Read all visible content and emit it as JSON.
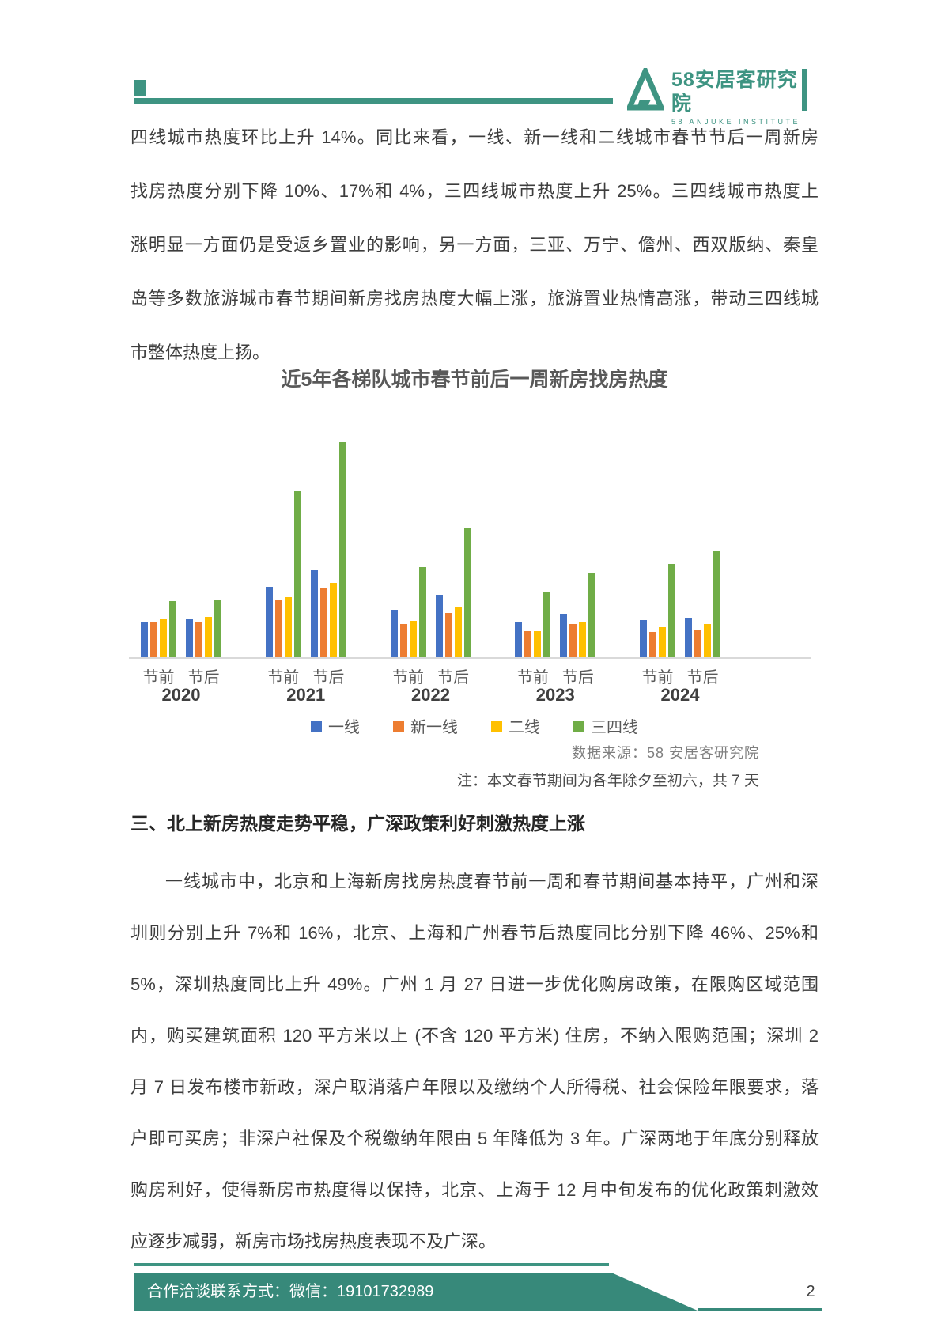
{
  "page": {
    "number": "2"
  },
  "colors": {
    "teal": "#3E9482",
    "teal_dark": "#37897A",
    "body_text": "#3D3D3D",
    "series_blue": "#4472C4",
    "series_orange": "#ED7D31",
    "series_yellow": "#FFC000",
    "series_green": "#70AD47"
  },
  "header": {
    "logo_text": "58安居客研究院",
    "logo_subtext": "58 ANJUKE INSTITUTE"
  },
  "paragraph1": {
    "lines": [
      "四线城市热度环比上升 14%。同比来看，一线、新一线和二线城市春节节后一周新房",
      "找房热度分别下降 10%、17%和 4%，三四线城市热度上升 25%。三四线城市热度上",
      "涨明显一方面仍是受返乡置业的影响，另一方面，三亚、万宁、儋州、西双版纳、秦皇",
      "岛等多数旅游城市春节期间新房找房热度大幅上涨，旅游置业热情高涨，带动三四线城",
      "市整体热度上扬。"
    ]
  },
  "chart_data": {
    "type": "bar",
    "title": "近5年各梯队城市春节前后一周新房找房热度",
    "series_names": [
      "一线",
      "新一线",
      "二线",
      "三四线"
    ],
    "series_colors": [
      "#4472C4",
      "#ED7D31",
      "#FFC000",
      "#70AD47"
    ],
    "period_labels": [
      "节前",
      "节后"
    ],
    "categories": [
      "2020",
      "2021",
      "2022",
      "2023",
      "2024"
    ],
    "ylim": [
      0,
      100
    ],
    "y_axis_visible": false,
    "grid": false,
    "legend_position": "bottom",
    "groups": [
      {
        "year": "2020",
        "periods": [
          {
            "label": "节前",
            "values": [
              16.5,
              16.3,
              18.1,
              26.0
            ]
          },
          {
            "label": "节后",
            "values": [
              18.0,
              16.2,
              18.6,
              26.8
            ]
          }
        ]
      },
      {
        "year": "2021",
        "periods": [
          {
            "label": "节前",
            "values": [
              32.8,
              27.0,
              28.1,
              77.2
            ]
          },
          {
            "label": "节后",
            "values": [
              40.5,
              32.4,
              34.5,
              100.0
            ]
          }
        ]
      },
      {
        "year": "2022",
        "periods": [
          {
            "label": "节前",
            "values": [
              22.0,
              15.4,
              16.9,
              41.9
            ]
          },
          {
            "label": "节后",
            "values": [
              29.2,
              20.6,
              23.2,
              59.8
            ]
          }
        ]
      },
      {
        "year": "2023",
        "periods": [
          {
            "label": "节前",
            "values": [
              16.3,
              12.2,
              12.2,
              30.2
            ]
          },
          {
            "label": "节后",
            "values": [
              20.4,
              15.4,
              16.0,
              39.4
            ]
          }
        ]
      },
      {
        "year": "2024",
        "periods": [
          {
            "label": "节前",
            "values": [
              17.3,
              11.6,
              13.8,
              43.2
            ]
          },
          {
            "label": "节后",
            "values": [
              18.2,
              12.8,
              15.4,
              49.3
            ]
          }
        ]
      }
    ]
  },
  "source_note": "数据来源：58 安居客研究院",
  "footnote": "注：本文春节期间为各年除夕至初六，共 7 天",
  "section2": {
    "heading": "三、北上新房热度走势平稳，广深政策利好刺激热度上涨",
    "lines": [
      "一线城市中，北京和上海新房找房热度春节前一周和春节期间基本持平，广州和深",
      "圳则分别上升 7%和 16%，北京、上海和广州春节后热度同比分别下降 46%、25%和",
      "5%，深圳热度同比上升 49%。广州 1 月 27 日进一步优化购房政策，在限购区域范围",
      "内，购买建筑面积 120 平方米以上 (不含 120 平方米) 住房，不纳入限购范围；深圳 2",
      "月 7 日发布楼市新政，深户取消落户年限以及缴纳个人所得税、社会保险年限要求，落",
      "户即可买房；非深户社保及个税缴纳年限由 5 年降低为 3 年。广深两地于年底分别释放",
      "购房利好，使得新房市热度得以保持，北京、上海于 12 月中旬发布的优化政策刺激效",
      "应逐步减弱，新房市场找房热度表现不及广深。"
    ]
  },
  "footer": {
    "contact": "合作洽谈联系方式：微信：19101732989"
  }
}
